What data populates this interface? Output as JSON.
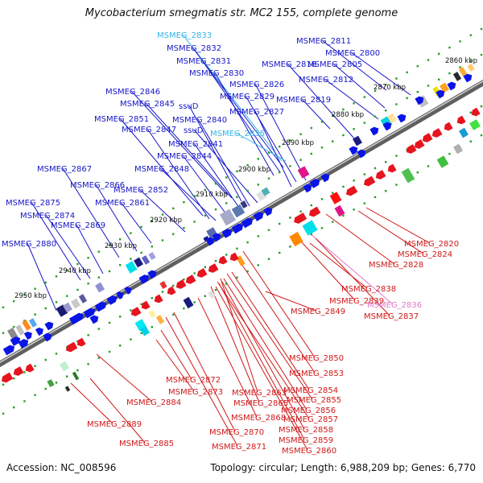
{
  "title": "Mycobacterium smegmatis str. MC2 155, complete genome",
  "footer": {
    "accession": "Accession: NC_008596",
    "summary": "Topology: circular; Length: 6,988,209 bp; Genes: 6,770"
  },
  "colors": {
    "forward_gene": "#0a14e6",
    "reverse_gene": "#e6141e",
    "forward_label": "#1616c8",
    "reverse_label": "#d01818",
    "highlight_forward": "#33b5e6",
    "highlight_reverse": "#e078c8",
    "backbone": "#666666",
    "tick_dots": "#2a9a2a"
  },
  "scale_labels": [
    "2860 kbp",
    "2870 kbp",
    "2880 kbp",
    "2890 kbp",
    "2900 kbp",
    "2910 kbp",
    "2920 kbp",
    "2930 kbp",
    "2940 kbp",
    "2950 kbp"
  ],
  "forward_genes": [
    {
      "label": "MSMEG_2811",
      "highlight": false
    },
    {
      "label": "MSMEG_2800",
      "highlight": false
    },
    {
      "label": "MSMEG_2805",
      "highlight": false
    },
    {
      "label": "MSMEG_2818",
      "highlight": false
    },
    {
      "label": "MSMEG_2812",
      "highlight": false
    },
    {
      "label": "MSMEG_2833",
      "highlight": true
    },
    {
      "label": "MSMEG_2832",
      "highlight": false
    },
    {
      "label": "MSMEG_2831",
      "highlight": false
    },
    {
      "label": "MSMEG_2830",
      "highlight": false
    },
    {
      "label": "MSMEG_2826",
      "highlight": false
    },
    {
      "label": "MSMEG_2829",
      "highlight": false
    },
    {
      "label": "MSMEG_2819",
      "highlight": false
    },
    {
      "label": "MSMEG_2827",
      "highlight": false
    },
    {
      "label": "MSMEG_2846",
      "highlight": false
    },
    {
      "label": "MSMEG_2845",
      "highlight": false
    },
    {
      "label": "ssuD",
      "highlight": false
    },
    {
      "label": "MSMEG_2840",
      "highlight": false
    },
    {
      "label": "MSMEG_2851",
      "highlight": false
    },
    {
      "label": "MSMEG_2847",
      "highlight": false
    },
    {
      "label": "ssuD",
      "highlight": false
    },
    {
      "label": "MSMEG_2835",
      "highlight": true
    },
    {
      "label": "MSMEG_2841",
      "highlight": false
    },
    {
      "label": "MSMEG_2844",
      "highlight": false
    },
    {
      "label": "MSMEG_2848",
      "highlight": false
    },
    {
      "label": "MSMEG_2867",
      "highlight": false
    },
    {
      "label": "MSMEG_2866",
      "highlight": false
    },
    {
      "label": "MSMEG_2852",
      "highlight": false
    },
    {
      "label": "MSMEG_2861",
      "highlight": false
    },
    {
      "label": "MSMEG_2875",
      "highlight": false
    },
    {
      "label": "MSMEG_2874",
      "highlight": false
    },
    {
      "label": "MSMEG_2869",
      "highlight": false
    },
    {
      "label": "MSMEG_2880",
      "highlight": false
    }
  ],
  "reverse_genes": [
    {
      "label": "MSMEG_2820",
      "highlight": false
    },
    {
      "label": "MSMEG_2824",
      "highlight": false
    },
    {
      "label": "MSMEG_2828",
      "highlight": false
    },
    {
      "label": "MSMEG_2838",
      "highlight": false
    },
    {
      "label": "MSMEG_2836",
      "highlight": true
    },
    {
      "label": "MSMEG_2839",
      "highlight": false
    },
    {
      "label": "MSMEG_2837",
      "highlight": false
    },
    {
      "label": "MSMEG_2849",
      "highlight": false
    },
    {
      "label": "MSMEG_2850",
      "highlight": false
    },
    {
      "label": "MSMEG_2853",
      "highlight": false
    },
    {
      "label": "MSMEG_2872",
      "highlight": false
    },
    {
      "label": "MSMEG_2854",
      "highlight": false
    },
    {
      "label": "MSMEG_2873",
      "highlight": false
    },
    {
      "label": "MSMEG_2863",
      "highlight": false
    },
    {
      "label": "MSMEG_2855",
      "highlight": false
    },
    {
      "label": "MSMEG_2884",
      "highlight": false
    },
    {
      "label": "MSMEG_2865",
      "highlight": false
    },
    {
      "label": "MSMEG_2856",
      "highlight": false
    },
    {
      "label": "MSMEG_2868",
      "highlight": false
    },
    {
      "label": "MSMEG_2857",
      "highlight": false
    },
    {
      "label": "MSMEG_2889",
      "highlight": false
    },
    {
      "label": "MSMEG_2870",
      "highlight": false
    },
    {
      "label": "MSMEG_2858",
      "highlight": false
    },
    {
      "label": "MSMEG_2885",
      "highlight": false
    },
    {
      "label": "MSMEG_2859",
      "highlight": false
    },
    {
      "label": "MSMEG_2871",
      "highlight": false
    },
    {
      "label": "MSMEG_2860",
      "highlight": false
    }
  ]
}
